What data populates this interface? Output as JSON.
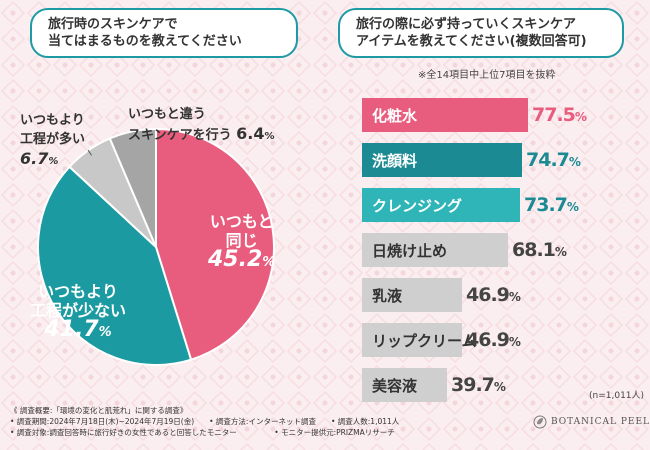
{
  "left_title": [
    "旅行時のスキンケアで",
    "当てはまるものを教えてください"
  ],
  "right_title": [
    "旅行の際に必ず持っていくスキンケア",
    "アイテムを教えてください(複数回答可)"
  ],
  "right_note": "※全14項目中上位7項目を抜粋",
  "n_label": "(n=1,011人)",
  "chart_data": [
    {
      "type": "pie",
      "title": "旅行時のスキンケアで当てはまるものを教えてください",
      "slices": [
        {
          "label": [
            "いつもと",
            "同じ"
          ],
          "value": 45.2,
          "display": "45.2",
          "unit": "%",
          "color": "#e85d7d",
          "label_color": "#ffffff"
        },
        {
          "label": [
            "いつもより",
            "工程が少ない"
          ],
          "value": 41.7,
          "display": "41.7",
          "unit": "%",
          "color": "#1c9aa1",
          "label_color": "#ffffff"
        },
        {
          "label": [
            "いつもより",
            "工程が多い"
          ],
          "value": 6.7,
          "display": "6.7",
          "unit": "%",
          "color": "#c8c8c8",
          "label_color": "#333333"
        },
        {
          "label": [
            "いつもと違う",
            "スキンケアを行う"
          ],
          "value": 6.4,
          "display": "6.4",
          "unit": "%",
          "color": "#a5a5a5",
          "label_color": "#333333"
        }
      ]
    },
    {
      "type": "bar",
      "orientation": "horizontal",
      "title": "旅行の際に必ず持っていくスキンケアアイテムを教えてください(複数回答可)",
      "xlim": [
        0,
        100
      ],
      "unit": "%",
      "categories": [
        "化粧水",
        "洗顔料",
        "クレンジング",
        "日焼け止め",
        "乳液",
        "リップクリーム",
        "美容液"
      ],
      "values": [
        77.5,
        74.7,
        73.7,
        68.1,
        46.9,
        46.9,
        39.7
      ],
      "display": [
        "77.5",
        "74.7",
        "73.7",
        "68.1",
        "46.9",
        "46.9",
        "39.7"
      ],
      "colors": [
        "#e85d7d",
        "#1c8a92",
        "#2fb5b7",
        "#cfcfcf",
        "#cfcfcf",
        "#cfcfcf",
        "#cfcfcf"
      ],
      "label_colors": [
        "#ffffff",
        "#ffffff",
        "#ffffff",
        "#333333",
        "#333333",
        "#333333",
        "#333333"
      ],
      "value_colors": [
        "#e85d7d",
        "#1c8a92",
        "#1c8a92",
        "#444444",
        "#444444",
        "#444444",
        "#444444"
      ]
    }
  ],
  "footer": [
    "《 調査概要:「環境の変化と肌荒れ」に関する調査》",
    "• 調査期間:2024年7月18日(木)~2024年7月19日(金)　　• 調査方法:インターネット調査　　• 調査人数:1,011人",
    "• 調査対象:調査回答時に旅行好きの女性であると回答したモニター　　　　　• モニター提供元:PRIZMAリサーチ"
  ],
  "brand": "BOTANICAL PEEL"
}
